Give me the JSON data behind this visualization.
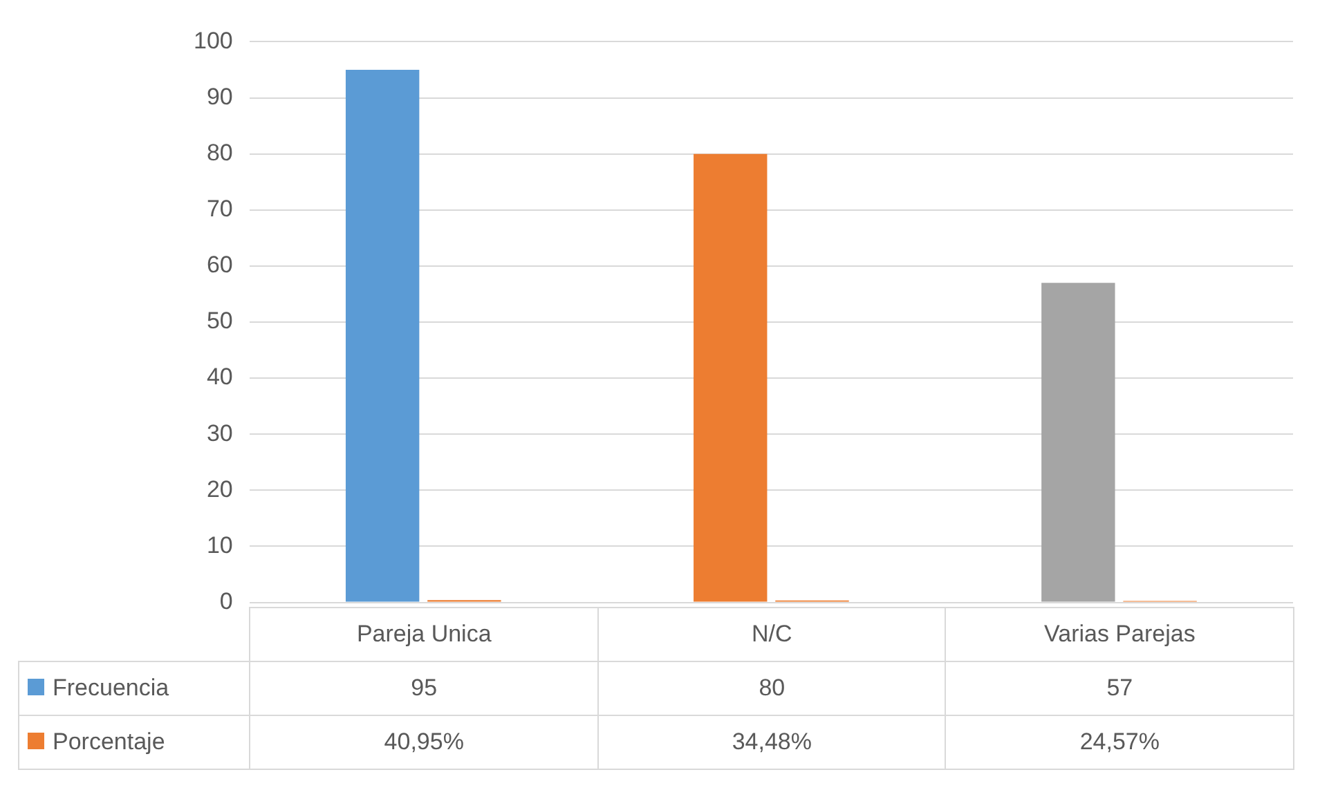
{
  "chart_data": {
    "type": "bar",
    "categories": [
      "Pareja Unica",
      "N/C",
      "Varias Parejas"
    ],
    "series": [
      {
        "name": "Frecuencia",
        "color": "#5b9bd5",
        "colors": [
          "#5b9bd5",
          "#ed7d31",
          "#a5a5a5"
        ],
        "values": [
          95,
          80,
          57
        ],
        "value_labels": [
          "95",
          "80",
          "57"
        ]
      },
      {
        "name": "Porcentaje",
        "color": "#ed7d31",
        "values": [
          0.4095,
          0.3448,
          0.2457
        ],
        "value_labels": [
          "40,95%",
          "34,48%",
          "24,57%"
        ]
      }
    ],
    "ylim": [
      0,
      100
    ],
    "yticks": [
      0,
      10,
      20,
      30,
      40,
      50,
      60,
      70,
      80,
      90,
      100
    ],
    "grid": "y",
    "legend": "bottom"
  }
}
